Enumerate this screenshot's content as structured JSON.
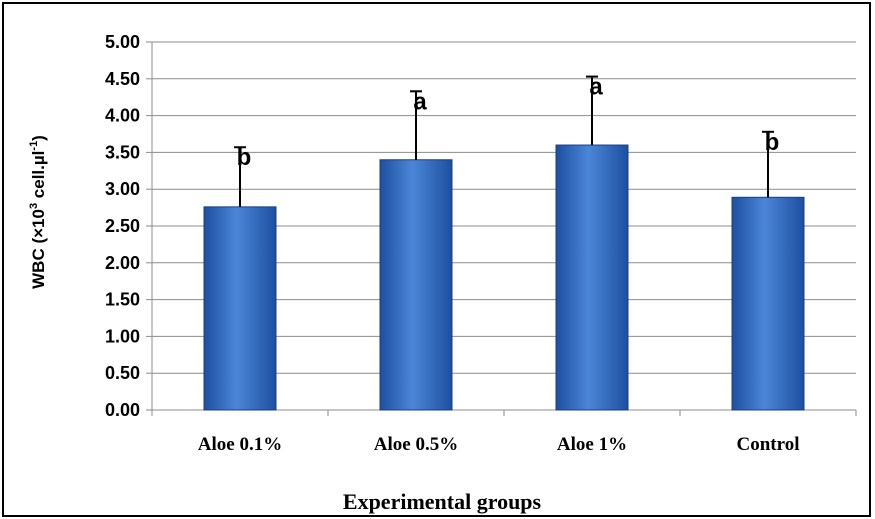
{
  "chart_data": {
    "type": "bar",
    "categories": [
      "Aloe 0.1%",
      "Aloe 0.5%",
      "Aloe 1%",
      "Control"
    ],
    "series": [
      {
        "values": [
          2.76,
          3.4,
          3.6,
          2.89
        ],
        "error": [
          0.81,
          0.93,
          0.93,
          0.89
        ],
        "significance": [
          "b",
          "a",
          "a",
          "b"
        ]
      }
    ],
    "xlabel": "Experimental groups",
    "ylabel": {
      "prefix": "WBC (×10",
      "sup1": "3",
      "middle": " cell.µl",
      "sup2": "-1",
      "suffix": ")"
    },
    "ylim": [
      0,
      5
    ],
    "yticks": [
      "0.00",
      "0.50",
      "1.00",
      "1.50",
      "2.00",
      "2.50",
      "3.00",
      "3.50",
      "4.00",
      "4.50",
      "5.00"
    ],
    "grid": true,
    "bar_color": "#3f74c8"
  }
}
